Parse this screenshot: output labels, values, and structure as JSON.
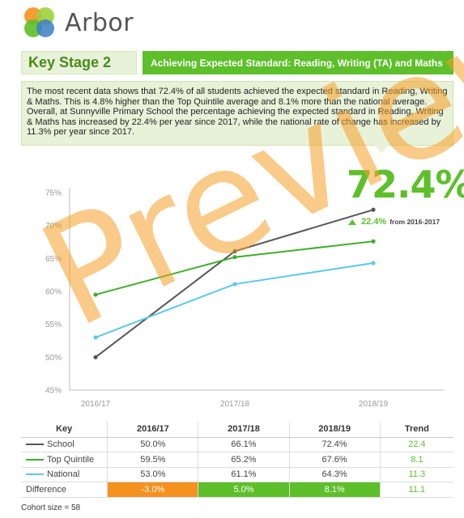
{
  "brand": {
    "name": "Arbor",
    "colors": [
      "#5dbf2a",
      "#9ed03d",
      "#f5911e",
      "#3a7fc4"
    ]
  },
  "header": {
    "stage_label": "Key Stage 2",
    "title": "Achieving Expected Standard: Reading, Writing (TA) and Maths"
  },
  "summary": "The most recent data shows that 72.4% of all students achieved the expected standard in Reading, Writing & Maths. This is 4.8% higher than the Top Quintile average and 8.1% more than the national average. Overall, at Sunnyville Primary School the percentage achieving the expected standard in Reading, Writing & Maths has increased by 22.4% per year since 2017, while the national rate of change has increased by 11.3% per year since 2017.",
  "headline": {
    "value": "72.4%",
    "change": "22.4%",
    "change_label": "from 2016-2017"
  },
  "chart_data": {
    "type": "line",
    "categories": [
      "2016/17",
      "2017/18",
      "2018/19"
    ],
    "ylim": [
      45,
      75
    ],
    "yticks": [
      "45%",
      "50%",
      "55%",
      "60%",
      "65%",
      "70%",
      "75%"
    ],
    "series": [
      {
        "name": "School",
        "values": [
          50.0,
          66.1,
          72.4
        ],
        "color": "#555555"
      },
      {
        "name": "Top Quintile",
        "values": [
          59.5,
          65.2,
          67.6
        ],
        "color": "#3fae2a"
      },
      {
        "name": "National",
        "values": [
          53.0,
          61.1,
          64.3
        ],
        "color": "#5bc8e8"
      }
    ]
  },
  "table": {
    "headers": [
      "Key",
      "2016/17",
      "2017/18",
      "2018/19",
      "Trend"
    ],
    "rows": [
      {
        "key": "School",
        "color": "#555555",
        "values": [
          "50.0%",
          "66.1%",
          "72.4%"
        ],
        "trend": "22.4"
      },
      {
        "key": "Top Quintile",
        "color": "#3fae2a",
        "values": [
          "59.5%",
          "65.2%",
          "67.6%"
        ],
        "trend": "8.1"
      },
      {
        "key": "National",
        "color": "#5bc8e8",
        "values": [
          "53.0%",
          "61.1%",
          "64.3%"
        ],
        "trend": "11.3"
      }
    ],
    "difference": {
      "key": "Difference",
      "values": [
        "-3.0%",
        "5.0%",
        "8.1%"
      ],
      "trend": "11.1"
    }
  },
  "cohort": "Cohort size = 58",
  "watermark": "Preview"
}
